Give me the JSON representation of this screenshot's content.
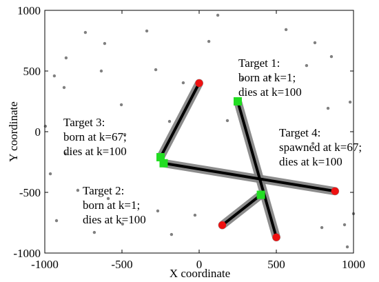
{
  "chart_data": {
    "type": "scatter",
    "xlabel": "X coordinate",
    "ylabel": "Y coordinate",
    "xlim": [
      -1000,
      1000
    ],
    "ylim": [
      -1000,
      1000
    ],
    "xticks": [
      -1000,
      -500,
      0,
      500,
      1000
    ],
    "yticks": [
      -1000,
      -500,
      0,
      500,
      1000
    ],
    "clutter": {
      "color": "#808080",
      "x": [
        -612,
        -339,
        121,
        -737,
        -862,
        -634,
        -281,
        -875,
        -996,
        750,
        857,
        563,
        696,
        978,
        835,
        63,
        -938,
        -866,
        -964,
        -786,
        -924,
        -679,
        -496,
        -179,
        -27,
        -589,
        -268,
        795,
        942,
        960,
        737,
        652,
        1000,
        -482,
        -192,
        183,
        460,
        281,
        -504,
        -103
      ],
      "y": [
        727,
        830,
        960,
        818,
        608,
        500,
        511,
        364,
        45,
        733,
        619,
        841,
        545,
        244,
        193,
        744,
        460,
        -182,
        -347,
        -483,
        -733,
        -830,
        -761,
        -847,
        -688,
        -551,
        -653,
        -790,
        -767,
        -949,
        -97,
        -449,
        -676,
        -23,
        85,
        91,
        449,
        432,
        222,
        403
      ]
    },
    "measurement_color": "#808080",
    "track_color": "#000000",
    "start_color": "#22dd22",
    "end_color": "#ee1111",
    "tracks": [
      {
        "x": [
          250,
          500
        ],
        "y": [
          250,
          -870
        ]
      },
      {
        "x": [
          -230,
          880
        ],
        "y": [
          -260,
          -490
        ]
      },
      {
        "x": [
          -250,
          0
        ],
        "y": [
          -210,
          400
        ]
      },
      {
        "x": [
          400,
          150
        ],
        "y": [
          -520,
          -770
        ]
      }
    ],
    "annotations": [
      [
        "Target 1:",
        "born at k=1;",
        "dies at k=100"
      ],
      [
        "Target 3:",
        "born at k=67;",
        "dies at k=100"
      ],
      [
        "Target 4:",
        "spawned at k=67;",
        "dies at k=100"
      ],
      [
        "Target 2:",
        "born at k=1;",
        "dies at k=100"
      ]
    ]
  }
}
